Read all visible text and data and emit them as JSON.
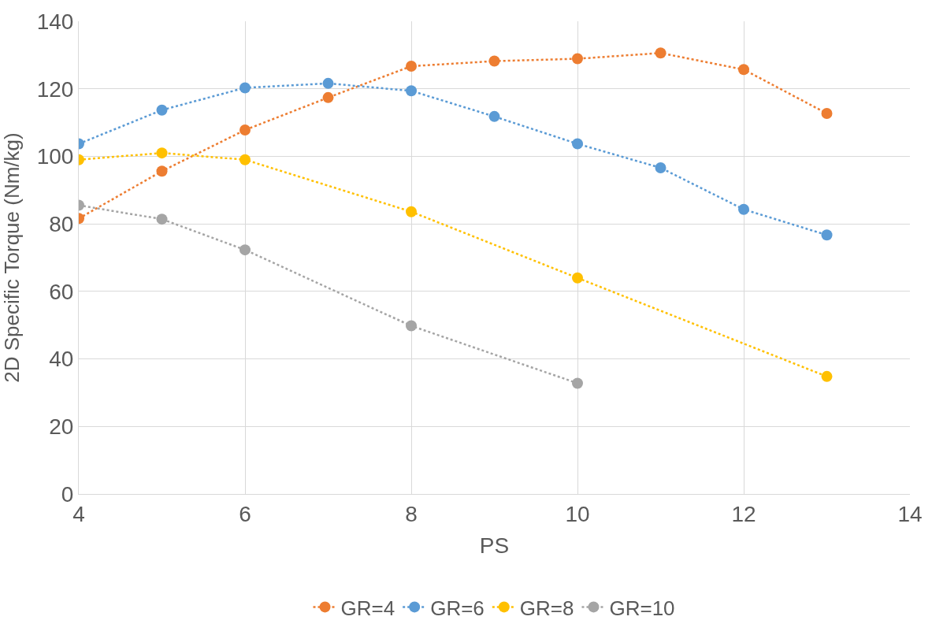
{
  "chart_data": {
    "type": "line",
    "xlabel": "PS",
    "ylabel": "2D Specific Torque (Nm/kg)",
    "xlim": [
      4,
      14
    ],
    "xticks": [
      4,
      6,
      8,
      10,
      12,
      14
    ],
    "ylim": [
      0,
      140
    ],
    "yticks": [
      0,
      20,
      40,
      60,
      80,
      100,
      120,
      140
    ],
    "grid": true,
    "legend": "bottom",
    "marker": "circle",
    "line_style": "dotted",
    "series": [
      {
        "name": "GR=4",
        "color": "#ed7d31",
        "x": [
          4,
          5,
          6,
          7,
          8,
          9,
          10,
          11,
          12,
          13
        ],
        "values": [
          81.6,
          95.6,
          107.8,
          117.4,
          126.7,
          128.2,
          128.9,
          130.6,
          125.7,
          112.7
        ]
      },
      {
        "name": "GR=6",
        "color": "#5b9bd5",
        "x": [
          4,
          5,
          6,
          7,
          8,
          9,
          10,
          11,
          12,
          13
        ],
        "values": [
          103.7,
          113.7,
          120.3,
          121.6,
          119.4,
          111.8,
          103.7,
          96.6,
          84.3,
          76.7
        ]
      },
      {
        "name": "GR=8",
        "color": "#ffc000",
        "x": [
          4,
          5,
          6,
          8,
          10,
          13
        ],
        "values": [
          99,
          101,
          99,
          83.6,
          64,
          34.8
        ]
      },
      {
        "name": "GR=10",
        "color": "#a5a5a5",
        "x": [
          4,
          5,
          6,
          8,
          10
        ],
        "values": [
          85.5,
          81.4,
          72.3,
          49.8,
          32.8
        ]
      }
    ]
  }
}
